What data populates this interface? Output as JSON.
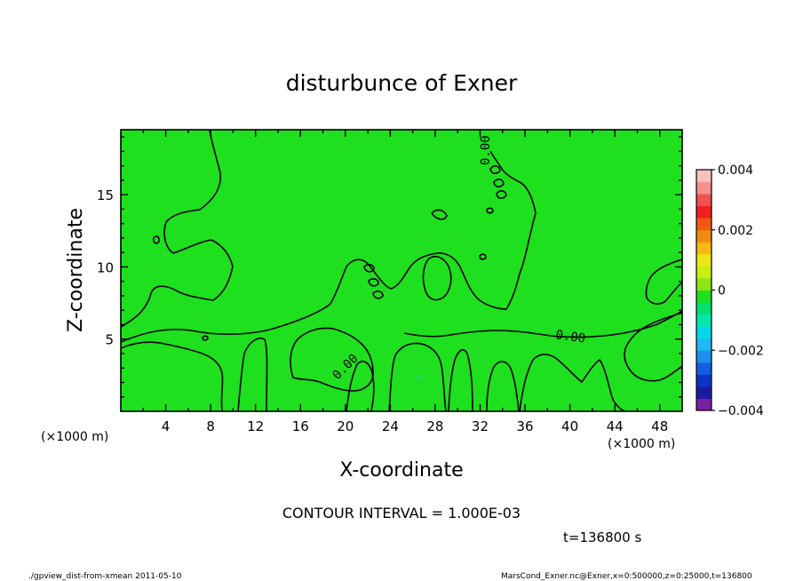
{
  "chart_data": {
    "type": "contour",
    "title": "disturbunce of Exner",
    "xlabel": "X-coordinate",
    "ylabel": "Z-coordinate",
    "x_unit": "(×1000 m)",
    "z_unit": "(×1000 m)",
    "xlim": [
      0,
      50
    ],
    "ylim": [
      0,
      19.5
    ],
    "x_ticks": [
      "4",
      "8",
      "12",
      "16",
      "20",
      "24",
      "28",
      "32",
      "36",
      "40",
      "44",
      "48"
    ],
    "y_ticks": [
      "5",
      "10",
      "15"
    ],
    "contour_interval_text": "CONTOUR INTERVAL = 1.000E-03",
    "contour_labels": [
      "0.00",
      "0.00",
      "0.00"
    ],
    "colorbar": {
      "ticks": [
        "0.004",
        "0.002",
        "0",
        "−0.002",
        "−0.004"
      ],
      "range": [
        -0.004,
        0.004
      ],
      "colors": [
        "#7a1fa2",
        "#1a1a9e",
        "#0b33c8",
        "#1060e0",
        "#1f8ef0",
        "#20b8f0",
        "#00d8e8",
        "#00e8b0",
        "#00e070",
        "#1ee01e",
        "#8ee614",
        "#c8ee14",
        "#ece818",
        "#f4b810",
        "#f08c10",
        "#f05a10",
        "#f02020",
        "#f05050",
        "#f49090",
        "#f8c0c0"
      ]
    }
  },
  "time_text": "t=136800 s",
  "footer": {
    "left": "./gpview_dist-from-xmean  2011-05-10",
    "right": "MarsCond_Exner.nc@Exner,x=0:500000,z=0:25000,t=136800"
  }
}
